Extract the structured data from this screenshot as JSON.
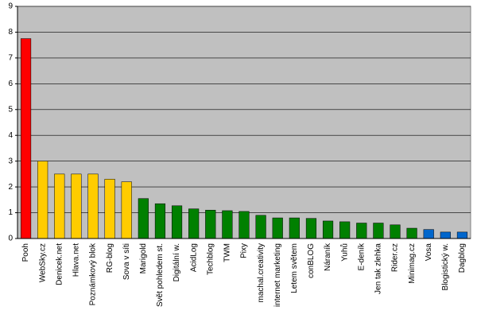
{
  "chart_data": {
    "type": "bar",
    "categories": [
      "Pooh",
      "WebSky.cz",
      "Denicek.net",
      "Hlava.net",
      "Poznámkový blok",
      "RG-blog",
      "Sova v síti",
      "Marigold",
      "Svět pohledem st.",
      "Digitální w.",
      "AcidLog",
      "Techblog",
      "TWM",
      "Pixy",
      "machal.creativity",
      "internet marketing",
      "Letem světem",
      "conBLOG",
      "Náraník",
      "Yuhů",
      "E-deník",
      "Jen tak zlehka",
      "Rider.cz",
      "Minimag.cz",
      "Vosa",
      "Blogistický w.",
      "Dagblog"
    ],
    "values": [
      7.75,
      3.0,
      2.5,
      2.5,
      2.5,
      2.3,
      2.2,
      1.55,
      1.35,
      1.27,
      1.15,
      1.1,
      1.08,
      1.05,
      0.9,
      0.8,
      0.8,
      0.78,
      0.68,
      0.65,
      0.6,
      0.6,
      0.53,
      0.4,
      0.35,
      0.25,
      0.25
    ],
    "colors": [
      "#ff0000",
      "#ffcc00",
      "#ffcc00",
      "#ffcc00",
      "#ffcc00",
      "#ffcc00",
      "#ffcc00",
      "#008000",
      "#008000",
      "#008000",
      "#008000",
      "#008000",
      "#008000",
      "#008000",
      "#008000",
      "#008000",
      "#008000",
      "#008000",
      "#008000",
      "#008000",
      "#008000",
      "#008000",
      "#008000",
      "#008000",
      "#0066cc",
      "#0066cc",
      "#0066cc"
    ],
    "ylim": [
      0,
      9
    ],
    "yticks": [
      0,
      1,
      2,
      3,
      4,
      5,
      6,
      7,
      8,
      9
    ],
    "grid": true
  }
}
